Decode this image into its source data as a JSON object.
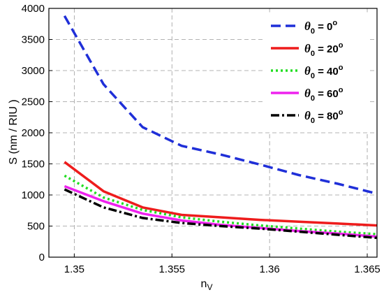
{
  "chart_data": {
    "type": "line",
    "title": "",
    "xlabel_main": "n",
    "xlabel_sub": "V",
    "ylabel": "S (nm / RIU )",
    "xlim": [
      1.3487,
      1.3655
    ],
    "ylim": [
      0,
      4000
    ],
    "xticks": [
      1.35,
      1.355,
      1.36,
      1.365
    ],
    "xtick_labels": [
      "1.35",
      "1.355",
      "1.36",
      "1.365"
    ],
    "yticks": [
      0,
      500,
      1000,
      1500,
      2000,
      2500,
      3000,
      3500,
      4000
    ],
    "ytick_labels": [
      "0",
      "500",
      "1000",
      "1500",
      "2000",
      "2500",
      "3000",
      "3500",
      "4000"
    ],
    "grid": true,
    "legend_position": "top-right",
    "x": [
      1.3495,
      1.3515,
      1.3535,
      1.3555,
      1.3575,
      1.3595,
      1.3615,
      1.3635,
      1.3655
    ],
    "series": [
      {
        "name": "θ0 = 0o",
        "legend_symbol": "θ",
        "legend_sub": "0",
        "legend_eq": " = 0",
        "legend_sup": "o",
        "color": "#1f2fd8",
        "dash": "14,7",
        "values": [
          3880,
          2780,
          2090,
          1790,
          1650,
          1490,
          1320,
          1180,
          1020
        ]
      },
      {
        "name": "θ0 = 20o",
        "legend_symbol": "θ",
        "legend_sub": "0",
        "legend_eq": " = 20",
        "legend_sup": "o",
        "color": "#ee1c1c",
        "dash": "",
        "values": [
          1530,
          1060,
          800,
          680,
          640,
          600,
          570,
          540,
          510
        ]
      },
      {
        "name": "θ0 = 40o",
        "legend_symbol": "θ",
        "legend_sub": "0",
        "legend_eq": " = 40",
        "legend_sup": "o",
        "color": "#22dd22",
        "dash": "3,4",
        "values": [
          1310,
          960,
          760,
          640,
          570,
          510,
          460,
          410,
          370
        ]
      },
      {
        "name": "θ0 = 60o",
        "legend_symbol": "θ",
        "legend_sub": "0",
        "legend_eq": " = 60",
        "legend_sup": "o",
        "color": "#ee22ee",
        "dash": "",
        "values": [
          1140,
          900,
          700,
          590,
          520,
          470,
          420,
          380,
          330
        ]
      },
      {
        "name": "θ0 = 80o",
        "legend_symbol": "θ",
        "legend_sub": "0",
        "legend_eq": " = 80",
        "legend_sup": "o",
        "color": "#000000",
        "dash": "12,4,3,4",
        "values": [
          1090,
          800,
          630,
          550,
          500,
          460,
          410,
          360,
          310
        ]
      }
    ]
  }
}
